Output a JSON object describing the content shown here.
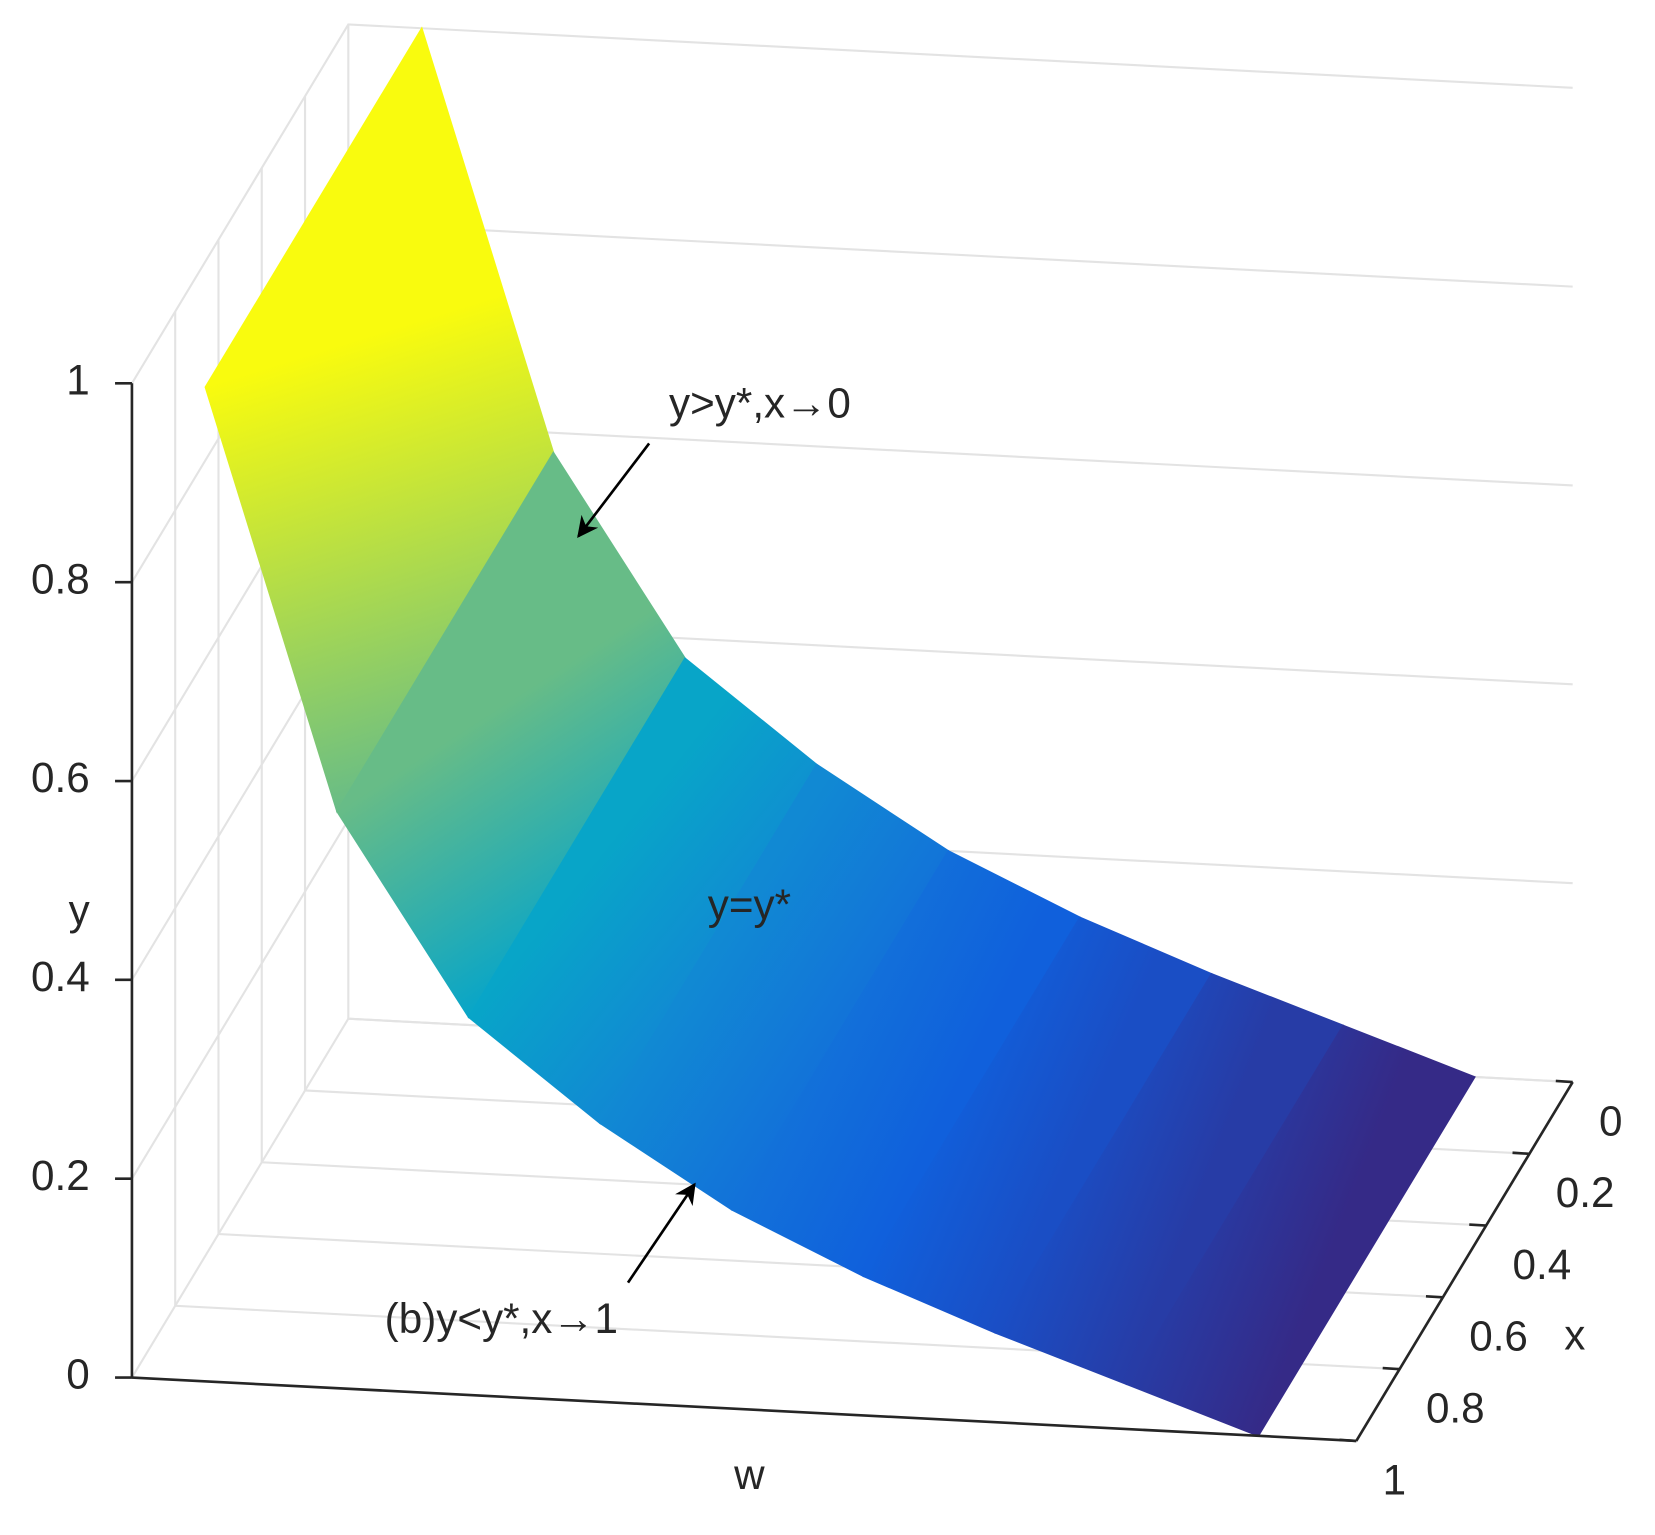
{
  "chart_data": {
    "type": "surface",
    "y_label": "y",
    "x_label": "x",
    "w_label": "w",
    "values": [
      1,
      0.58,
      0.38,
      0.28,
      0.2,
      0.14,
      0.09,
      0.045,
      0
    ],
    "ylim": [
      0,
      1
    ],
    "yticks": [
      0,
      0.2,
      0.4,
      0.6,
      0.8,
      1
    ],
    "xlim": [
      0,
      1
    ],
    "xticks": [
      0,
      0.2,
      0.4,
      0.6,
      0.8,
      1
    ],
    "colormap": [
      "#352a87",
      "#0f5cdd",
      "#1481d6",
      "#06a4ca",
      "#2eb7a4",
      "#87bf77",
      "#d1bb59",
      "#fec832",
      "#f9fb0e"
    ],
    "grid": true,
    "annotations": [
      "y>y*,x→0",
      "y=y*",
      "(b)y<y*,x→1"
    ]
  }
}
